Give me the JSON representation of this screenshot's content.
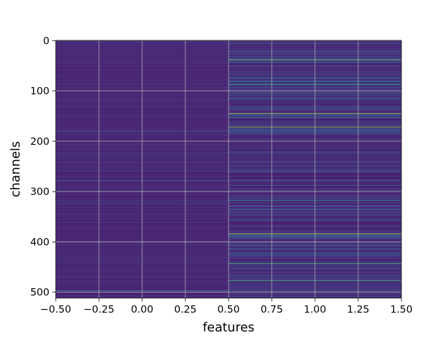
{
  "chart_data": {
    "type": "heatmap",
    "title": "",
    "xlabel": "features",
    "ylabel": "channels",
    "xlim": [
      -0.5,
      1.5
    ],
    "ylim": [
      511.5,
      -0.5
    ],
    "y_inverted": true,
    "x_ticks": [
      -0.5,
      -0.25,
      0.0,
      0.25,
      0.5,
      0.75,
      1.0,
      1.25,
      1.5
    ],
    "x_tick_labels": [
      "−0.50",
      "−0.25",
      "0.00",
      "0.25",
      "0.50",
      "0.75",
      "1.00",
      "1.25",
      "1.50"
    ],
    "y_ticks": [
      0,
      100,
      200,
      300,
      400,
      500
    ],
    "y_tick_labels": [
      "0",
      "100",
      "200",
      "300",
      "400",
      "500"
    ],
    "grid": true,
    "colormap": "viridis",
    "n_rows": 512,
    "columns": [
      {
        "feature_index": 0,
        "base_value": 0.12,
        "variation": 0.07,
        "highlights": [
          {
            "channel": 300,
            "value": 0.55
          },
          {
            "channel": 278,
            "value": 0.4
          },
          {
            "channel": 180,
            "value": 0.35
          },
          {
            "channel": 400,
            "value": 0.4
          },
          {
            "channel": 497,
            "value": 0.45
          }
        ]
      },
      {
        "feature_index": 1,
        "base_value": 0.1,
        "variation": 0.28,
        "highlights": [
          {
            "channel": 38,
            "value": 0.82
          },
          {
            "channel": 87,
            "value": 0.6
          },
          {
            "channel": 145,
            "value": 0.88
          },
          {
            "channel": 172,
            "value": 0.85
          },
          {
            "channel": 317,
            "value": 0.55
          },
          {
            "channel": 384,
            "value": 0.95
          },
          {
            "channel": 443,
            "value": 0.7
          },
          {
            "channel": 476,
            "value": 0.72
          }
        ]
      }
    ]
  }
}
